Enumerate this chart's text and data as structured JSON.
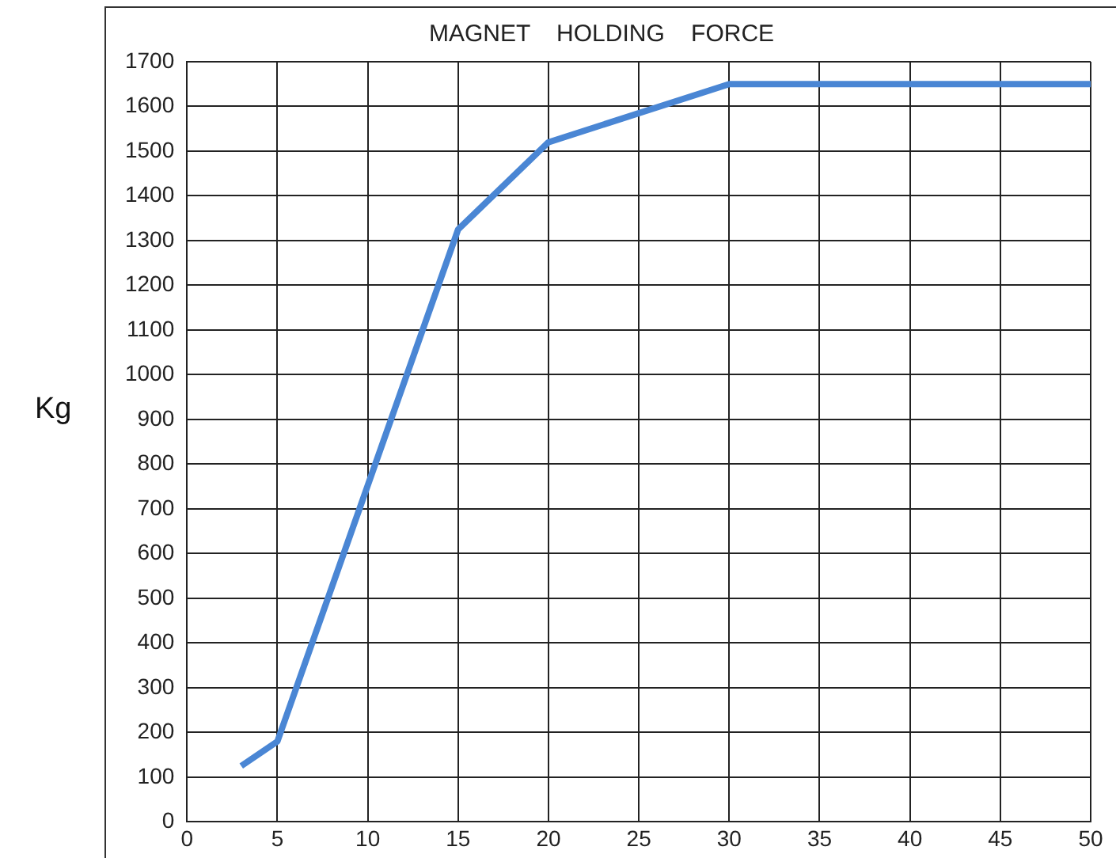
{
  "chart_data": {
    "type": "line",
    "title": "MAGNET    HOLDING    FORCE",
    "ylabel": "Kg",
    "x": [
      3,
      5,
      15,
      20,
      30,
      50
    ],
    "series": [
      {
        "color": "#4a86d4",
        "values": [
          125,
          180,
          1325,
          1520,
          1650,
          1650
        ]
      }
    ],
    "xlim": [
      0,
      50
    ],
    "xticks": [
      0,
      5,
      10,
      15,
      20,
      25,
      30,
      35,
      40,
      45,
      50
    ],
    "ylim": [
      0,
      1700
    ],
    "yticks": [
      0,
      100,
      200,
      300,
      400,
      500,
      600,
      700,
      800,
      900,
      1000,
      1100,
      1200,
      1300,
      1400,
      1500,
      1600,
      1700
    ],
    "grid": true,
    "legend": false,
    "marker": "none",
    "line_style": "solid"
  }
}
